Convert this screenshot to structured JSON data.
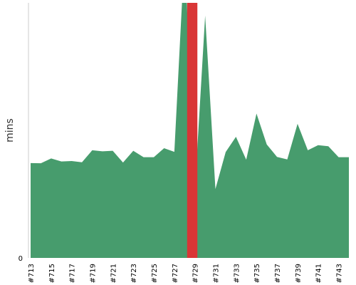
{
  "chart_data": {
    "type": "area",
    "ylabel": "mins",
    "xlabel": "",
    "y_tick_labels": [
      "0"
    ],
    "x": [
      "#713",
      "#714",
      "#715",
      "#716",
      "#717",
      "#718",
      "#719",
      "#720",
      "#721",
      "#722",
      "#723",
      "#724",
      "#725",
      "#726",
      "#727",
      "#728",
      "#729",
      "#730",
      "#731",
      "#732",
      "#733",
      "#734",
      "#735",
      "#736",
      "#737",
      "#738",
      "#739",
      "#740",
      "#741",
      "#742",
      "#743",
      "#744"
    ],
    "x_tick_labels": [
      "#713",
      "#715",
      "#717",
      "#719",
      "#721",
      "#723",
      "#725",
      "#727",
      "#729",
      "#731",
      "#733",
      "#735",
      "#737",
      "#739",
      "#741",
      "#743"
    ],
    "values": [
      37.2,
      37.1,
      39.0,
      37.8,
      38.0,
      37.5,
      42.2,
      41.8,
      42.0,
      37.4,
      42.0,
      39.5,
      39.5,
      43.0,
      41.6,
      120.0,
      26.8,
      95.0,
      27.0,
      41.5,
      47.5,
      38.5,
      56.6,
      44.5,
      39.6,
      38.6,
      52.6,
      42.2,
      44.2,
      43.8,
      39.5,
      39.5
    ],
    "highlight": {
      "from": "#728",
      "to": "#729"
    },
    "ylim": [
      0,
      100
    ],
    "grid": false,
    "colors": {
      "area": "#479c6d",
      "highlight": "#d93636",
      "axis": "#cccccc"
    }
  }
}
